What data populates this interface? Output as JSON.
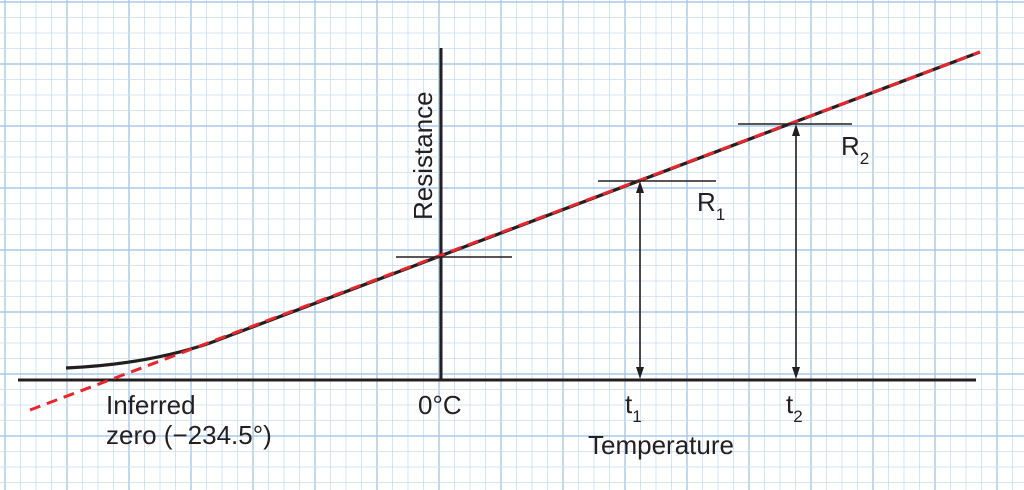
{
  "axes": {
    "x_title": "Temperature",
    "y_title": "Resistance",
    "origin_label": "0°C"
  },
  "marks": {
    "t1": {
      "base": "t",
      "sub": "1"
    },
    "t2": {
      "base": "t",
      "sub": "2"
    },
    "r1": {
      "base": "R",
      "sub": "1"
    },
    "r2": {
      "base": "R",
      "sub": "2"
    }
  },
  "inferred_zero": {
    "line1": "Inferred",
    "line2": "zero (−234.5°)"
  },
  "colors": {
    "grid_fine": "#c9def2",
    "grid_major": "#a9c8e8",
    "ink": "#231f20",
    "dashed_line": "#e8262b"
  }
}
